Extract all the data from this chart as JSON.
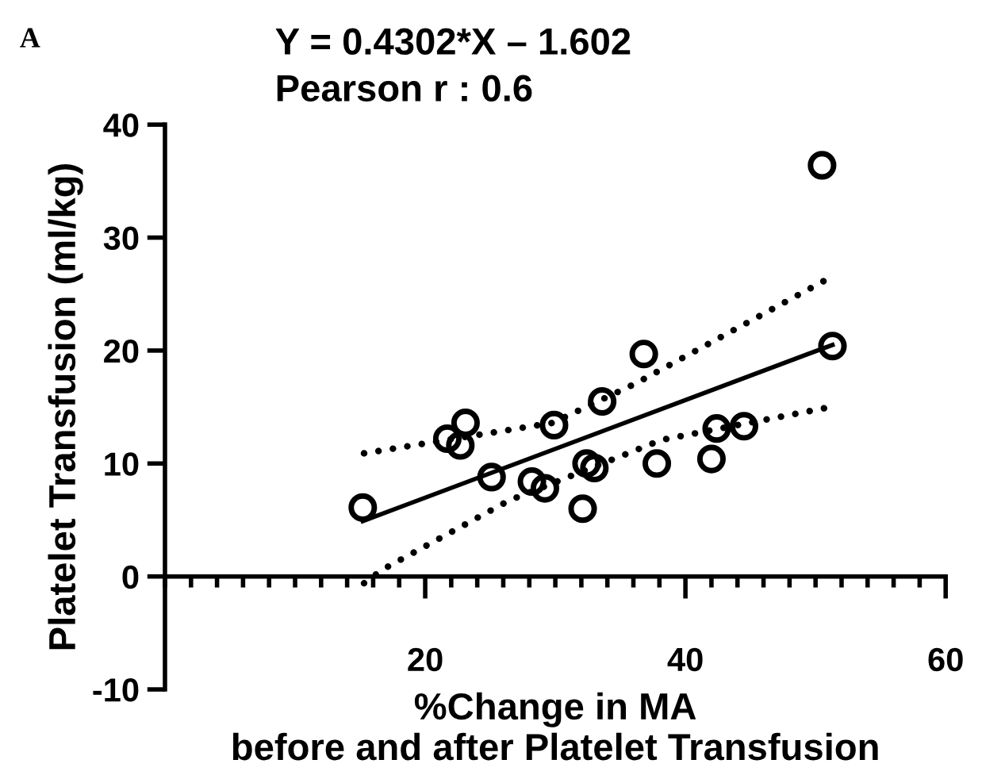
{
  "chart_data": {
    "type": "scatter",
    "xlabel": "%Change in MA\nbefore and after Platelet Transfusion",
    "ylabel": "Platelet Transfusion (ml/kg)",
    "annotations": [
      "A",
      "Y = 0.4302*X – 1.602",
      "Pearson r : 0.6"
    ],
    "xlim": [
      0,
      60
    ],
    "xticks": [
      20,
      40,
      60
    ],
    "ylim": [
      -10,
      40
    ],
    "yticks": [
      -10,
      0,
      10,
      20,
      30,
      40
    ],
    "grid": false,
    "legend": false,
    "series": [
      {
        "color": "#000000",
        "marker": "circle",
        "x": [
          50.5,
          51.3,
          36.8,
          33.6,
          29.9,
          23.1,
          21.7,
          22.7,
          42.4,
          44.5,
          42.0,
          37.8,
          32.4,
          33.0,
          25.1,
          28.2,
          29.2,
          32.1,
          15.2
        ],
        "values": [
          36.4,
          20.4,
          19.7,
          15.5,
          13.4,
          13.6,
          12.2,
          11.6,
          13.1,
          13.3,
          10.4,
          10.0,
          10.0,
          9.6,
          8.8,
          8.4,
          7.8,
          6.0,
          6.1
        ]
      },
      {
        "type": "line",
        "color": "#000000",
        "line_style": "solid",
        "x": [
          15.2,
          51.3
        ],
        "values": [
          4.9,
          20.5
        ]
      },
      {
        "type": "line",
        "color": "#000000",
        "line_style": "dotted",
        "x": [
          15.3,
          29.8,
          36.2,
          50.7
        ],
        "values": [
          10.9,
          13.6,
          17.1,
          26.2
        ]
      },
      {
        "type": "line",
        "color": "#000000",
        "line_style": "dotted",
        "x": [
          15.3,
          16.7,
          26.4,
          38.2,
          50.7
        ],
        "values": [
          -0.6,
          0.6,
          6.7,
          12.1,
          14.9
        ]
      }
    ]
  }
}
